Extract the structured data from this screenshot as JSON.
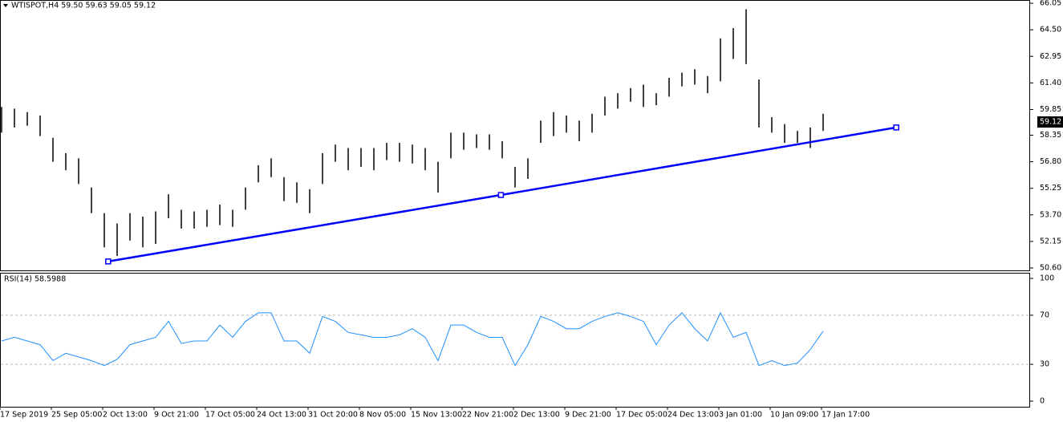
{
  "chart_data": [
    {
      "type": "range-bar",
      "title": "WTISPOT,H4 59.50 59.63 59.05 59.12",
      "color": "#000000",
      "high": [
        60.0,
        59.9,
        59.7,
        59.5,
        58.2,
        57.3,
        57.0,
        55.3,
        53.8,
        53.2,
        53.8,
        53.6,
        53.9,
        54.9,
        54.0,
        53.9,
        54.0,
        54.3,
        54.0,
        55.3,
        56.6,
        57.0,
        55.9,
        55.6,
        55.2,
        57.3,
        57.8,
        57.6,
        57.6,
        57.6,
        57.9,
        57.9,
        57.8,
        57.6,
        56.8,
        58.5,
        58.5,
        58.4,
        58.4,
        58.0,
        56.5,
        57.0,
        59.2,
        59.7,
        59.5,
        59.2,
        59.6,
        60.6,
        60.8,
        61.1,
        61.3,
        60.8,
        61.7,
        62.0,
        62.2,
        61.8,
        64.0,
        64.6,
        65.7,
        61.6,
        59.4,
        59.0,
        58.6,
        58.8,
        59.6
      ],
      "low": [
        58.5,
        58.8,
        58.9,
        58.3,
        56.8,
        56.3,
        55.5,
        53.8,
        51.8,
        51.3,
        52.2,
        51.8,
        52.0,
        53.5,
        52.9,
        52.9,
        53.0,
        53.1,
        53.0,
        54.0,
        55.6,
        55.9,
        54.5,
        54.4,
        53.8,
        55.5,
        56.8,
        56.3,
        56.5,
        56.3,
        56.9,
        56.8,
        56.7,
        56.3,
        55.0,
        57.0,
        57.5,
        57.6,
        57.5,
        57.0,
        55.3,
        55.8,
        57.9,
        58.3,
        58.5,
        58.0,
        58.5,
        59.5,
        59.9,
        60.3,
        60.0,
        60.1,
        60.6,
        61.2,
        61.3,
        60.8,
        61.5,
        62.8,
        62.5,
        58.8,
        58.5,
        57.9,
        57.9,
        57.6,
        58.6
      ],
      "last_price": 59.12,
      "ylim": [
        50.46,
        66.24
      ],
      "yticks": [
        66.05,
        {
          "value": 64.5,
          "label": "64.50"
        },
        62.95,
        {
          "value": 61.4,
          "label": "61.40"
        },
        59.85,
        58.35,
        {
          "value": 56.8,
          "label": "56.80"
        },
        55.25,
        {
          "value": 53.7,
          "label": "53.70"
        },
        52.15,
        {
          "value": 50.6,
          "label": "50.60"
        }
      ],
      "trendline": {
        "x": [
          8.3,
          38.9,
          69.7
        ],
        "y": [
          50.98,
          54.86,
          58.8
        ],
        "color": "#0000ff"
      }
    },
    {
      "type": "line",
      "title": "RSI(14) 58.5988",
      "color": "#1e90ff",
      "categories": [
        "17 Sep 2019",
        null,
        null,
        null,
        "25 Sep 05:00",
        null,
        null,
        null,
        "2 Oct 13:00",
        null,
        null,
        null,
        "9 Oct 21:00",
        null,
        null,
        null,
        "17 Oct 05:00",
        null,
        null,
        null,
        "24 Oct 13:00",
        null,
        null,
        null,
        "31 Oct 20:00",
        null,
        null,
        null,
        "8 Nov 05:00",
        null,
        null,
        null,
        "15 Nov 13:00",
        null,
        null,
        null,
        "22 Nov 21:00",
        null,
        null,
        null,
        "2 Dec 13:00",
        null,
        null,
        null,
        "9 Dec 21:00",
        null,
        null,
        null,
        "17 Dec 05:00",
        null,
        null,
        null,
        "24 Dec 13:00",
        null,
        null,
        null,
        "3 Jan 01:00",
        null,
        null,
        null,
        "10 Jan 09:00",
        null,
        null,
        null,
        "17 Jan 17:00"
      ],
      "values": [
        49,
        52,
        49,
        46,
        33,
        39,
        36,
        33,
        29,
        34,
        46,
        49,
        52,
        65,
        47,
        49,
        49,
        62,
        52,
        65,
        72,
        72,
        49,
        49,
        39,
        69,
        65,
        56,
        54,
        52,
        52,
        54,
        59,
        52,
        33,
        62,
        62,
        56,
        52,
        52,
        29,
        46,
        69,
        65,
        59,
        59,
        65,
        69,
        72,
        69,
        65,
        46,
        62,
        72,
        59,
        49,
        72,
        52,
        56,
        29,
        33,
        29,
        31,
        42,
        57
      ],
      "ylim": [
        -4.6,
        104.6
      ],
      "yticks": [
        100,
        70,
        30,
        0
      ],
      "levels": [
        70,
        30
      ]
    }
  ]
}
